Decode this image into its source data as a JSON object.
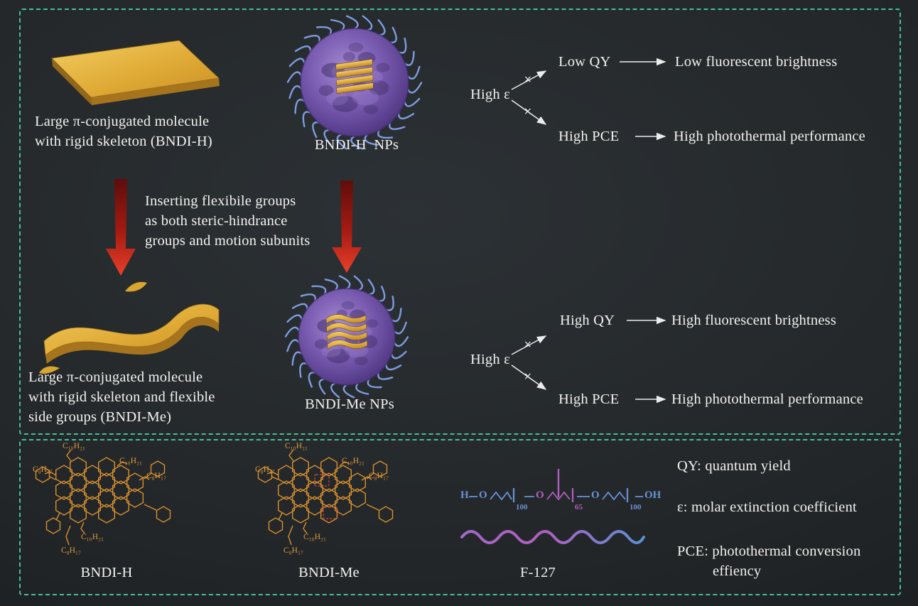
{
  "panels": {
    "top": {
      "rigid_caption": [
        "Large π-conjugated molecule",
        "with rigid skeleton (BNDI-H)"
      ],
      "rigid_np_label": "BNDI-H  NPs",
      "insert_note": [
        "Inserting flexibile groups",
        "as both steric-hindrance",
        "groups and motion subunits"
      ],
      "flexible_caption": [
        "Large π-conjugated molecule",
        "with rigid skeleton and flexible",
        "side groups (BNDI-Me)"
      ],
      "flexible_np_label": "BNDI-Me NPs",
      "branch_bndi_h": {
        "root": "High ε",
        "up_label": "Low QY",
        "up_result": "Low fluorescent brightness",
        "down_label": "High PCE",
        "down_result": "High photothermal performance",
        "cross_mark": "×"
      },
      "branch_bndi_me": {
        "root": "High ε",
        "up_label": "High QY",
        "up_result": "High fluorescent brightness",
        "down_label": "High PCE",
        "down_result": "High photothermal performance",
        "cross_mark": "×"
      }
    },
    "bottom": {
      "bndi_h": {
        "label": "BNDI-H",
        "substituents": [
          "C₁₀H₂₁",
          "C₈H₁₇",
          "C₁₀H₂₁",
          "C₈H₁₇",
          "C₁₀H₂₁",
          "C₈H₁₇"
        ]
      },
      "bndi_me": {
        "label": "BNDI-Me",
        "substituents": [
          "C₁₀H₂₁",
          "C₈H₁₇",
          "C₁₀H₂₁",
          "C₈H₁₇",
          "C₁₀H₂₁",
          "C₈H₁₇"
        ]
      },
      "f127": {
        "label": "F-127",
        "h": "H",
        "o1": "O",
        "n1": "100",
        "o2": "O",
        "n2": "65",
        "o3": "O",
        "n3": "100",
        "oh": "OH"
      },
      "legend": {
        "qy": "QY: quantum yield",
        "epsilon": "ε: molar extinction coefficient",
        "pce_line1": "PCE: photothermal conversion",
        "pce_line2": "effiency"
      }
    }
  },
  "colors": {
    "background": "#1f2326",
    "dashed_border": "#45c096",
    "text": "#f3f2ef",
    "gold": "#dfa73a",
    "nanoparticle_purple": "#6a4f9e",
    "hair_blue": "#7d9ce0",
    "structure_orange": "#d9902e",
    "f127_blue": "#6a92d8",
    "f127_purple": "#b05fc0",
    "red_arrow": "#d42b1e"
  }
}
